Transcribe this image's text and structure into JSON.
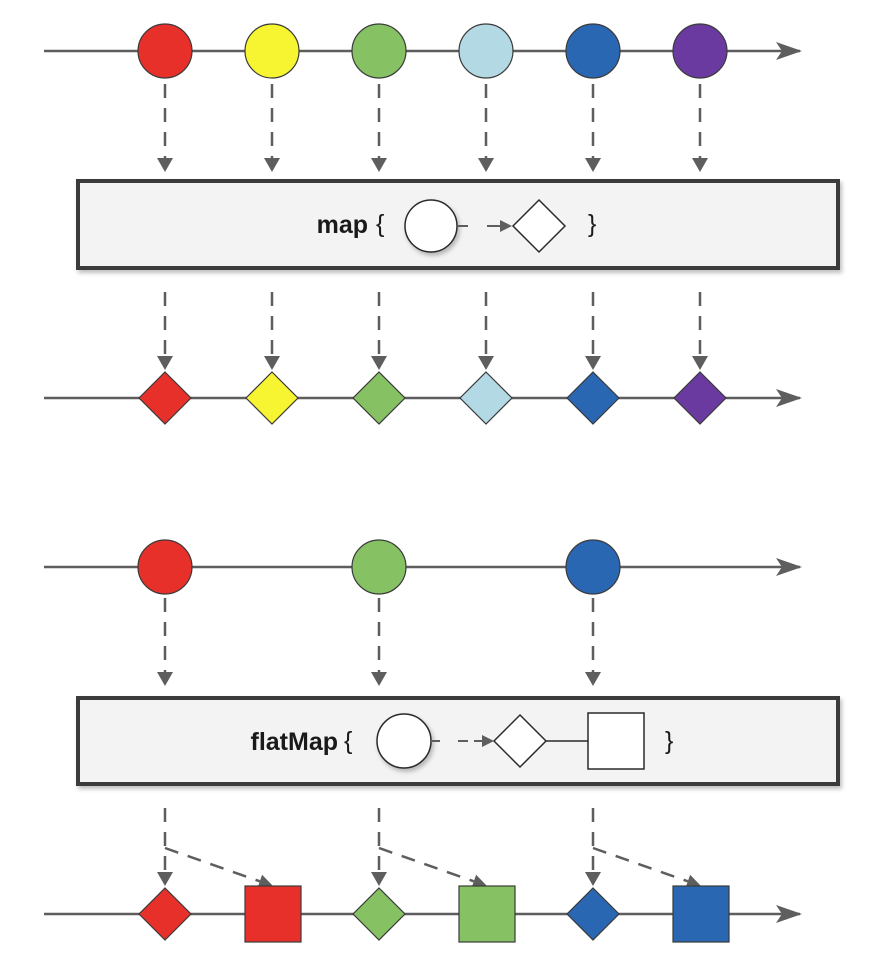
{
  "colors": {
    "line": "#5e5e5e",
    "red": "#e8302b",
    "yellow": "#f7f431",
    "green": "#86c263",
    "lightblue": "#b3d9e4",
    "blue": "#2a67b2",
    "purple": "#6b3aa0",
    "box_fill": "#f3f3f3",
    "box_stroke": "#3a3a3a"
  },
  "map_diagram": {
    "operator_name": "map",
    "open_brace": "{",
    "close_brace": "}",
    "input_items": [
      "red",
      "yellow",
      "green",
      "lightblue",
      "blue",
      "purple"
    ],
    "output_items": [
      "red",
      "yellow",
      "green",
      "lightblue",
      "blue",
      "purple"
    ],
    "input_shape": "circle",
    "output_shape": "diamond"
  },
  "flatmap_diagram": {
    "operator_name": "flatMap",
    "open_brace": "{",
    "close_brace": "}",
    "input_items": [
      "red",
      "green",
      "blue"
    ],
    "output_items": [
      {
        "color": "red",
        "shapes": [
          "diamond",
          "square"
        ]
      },
      {
        "color": "green",
        "shapes": [
          "diamond",
          "square"
        ]
      },
      {
        "color": "blue",
        "shapes": [
          "diamond",
          "square"
        ]
      }
    ]
  }
}
